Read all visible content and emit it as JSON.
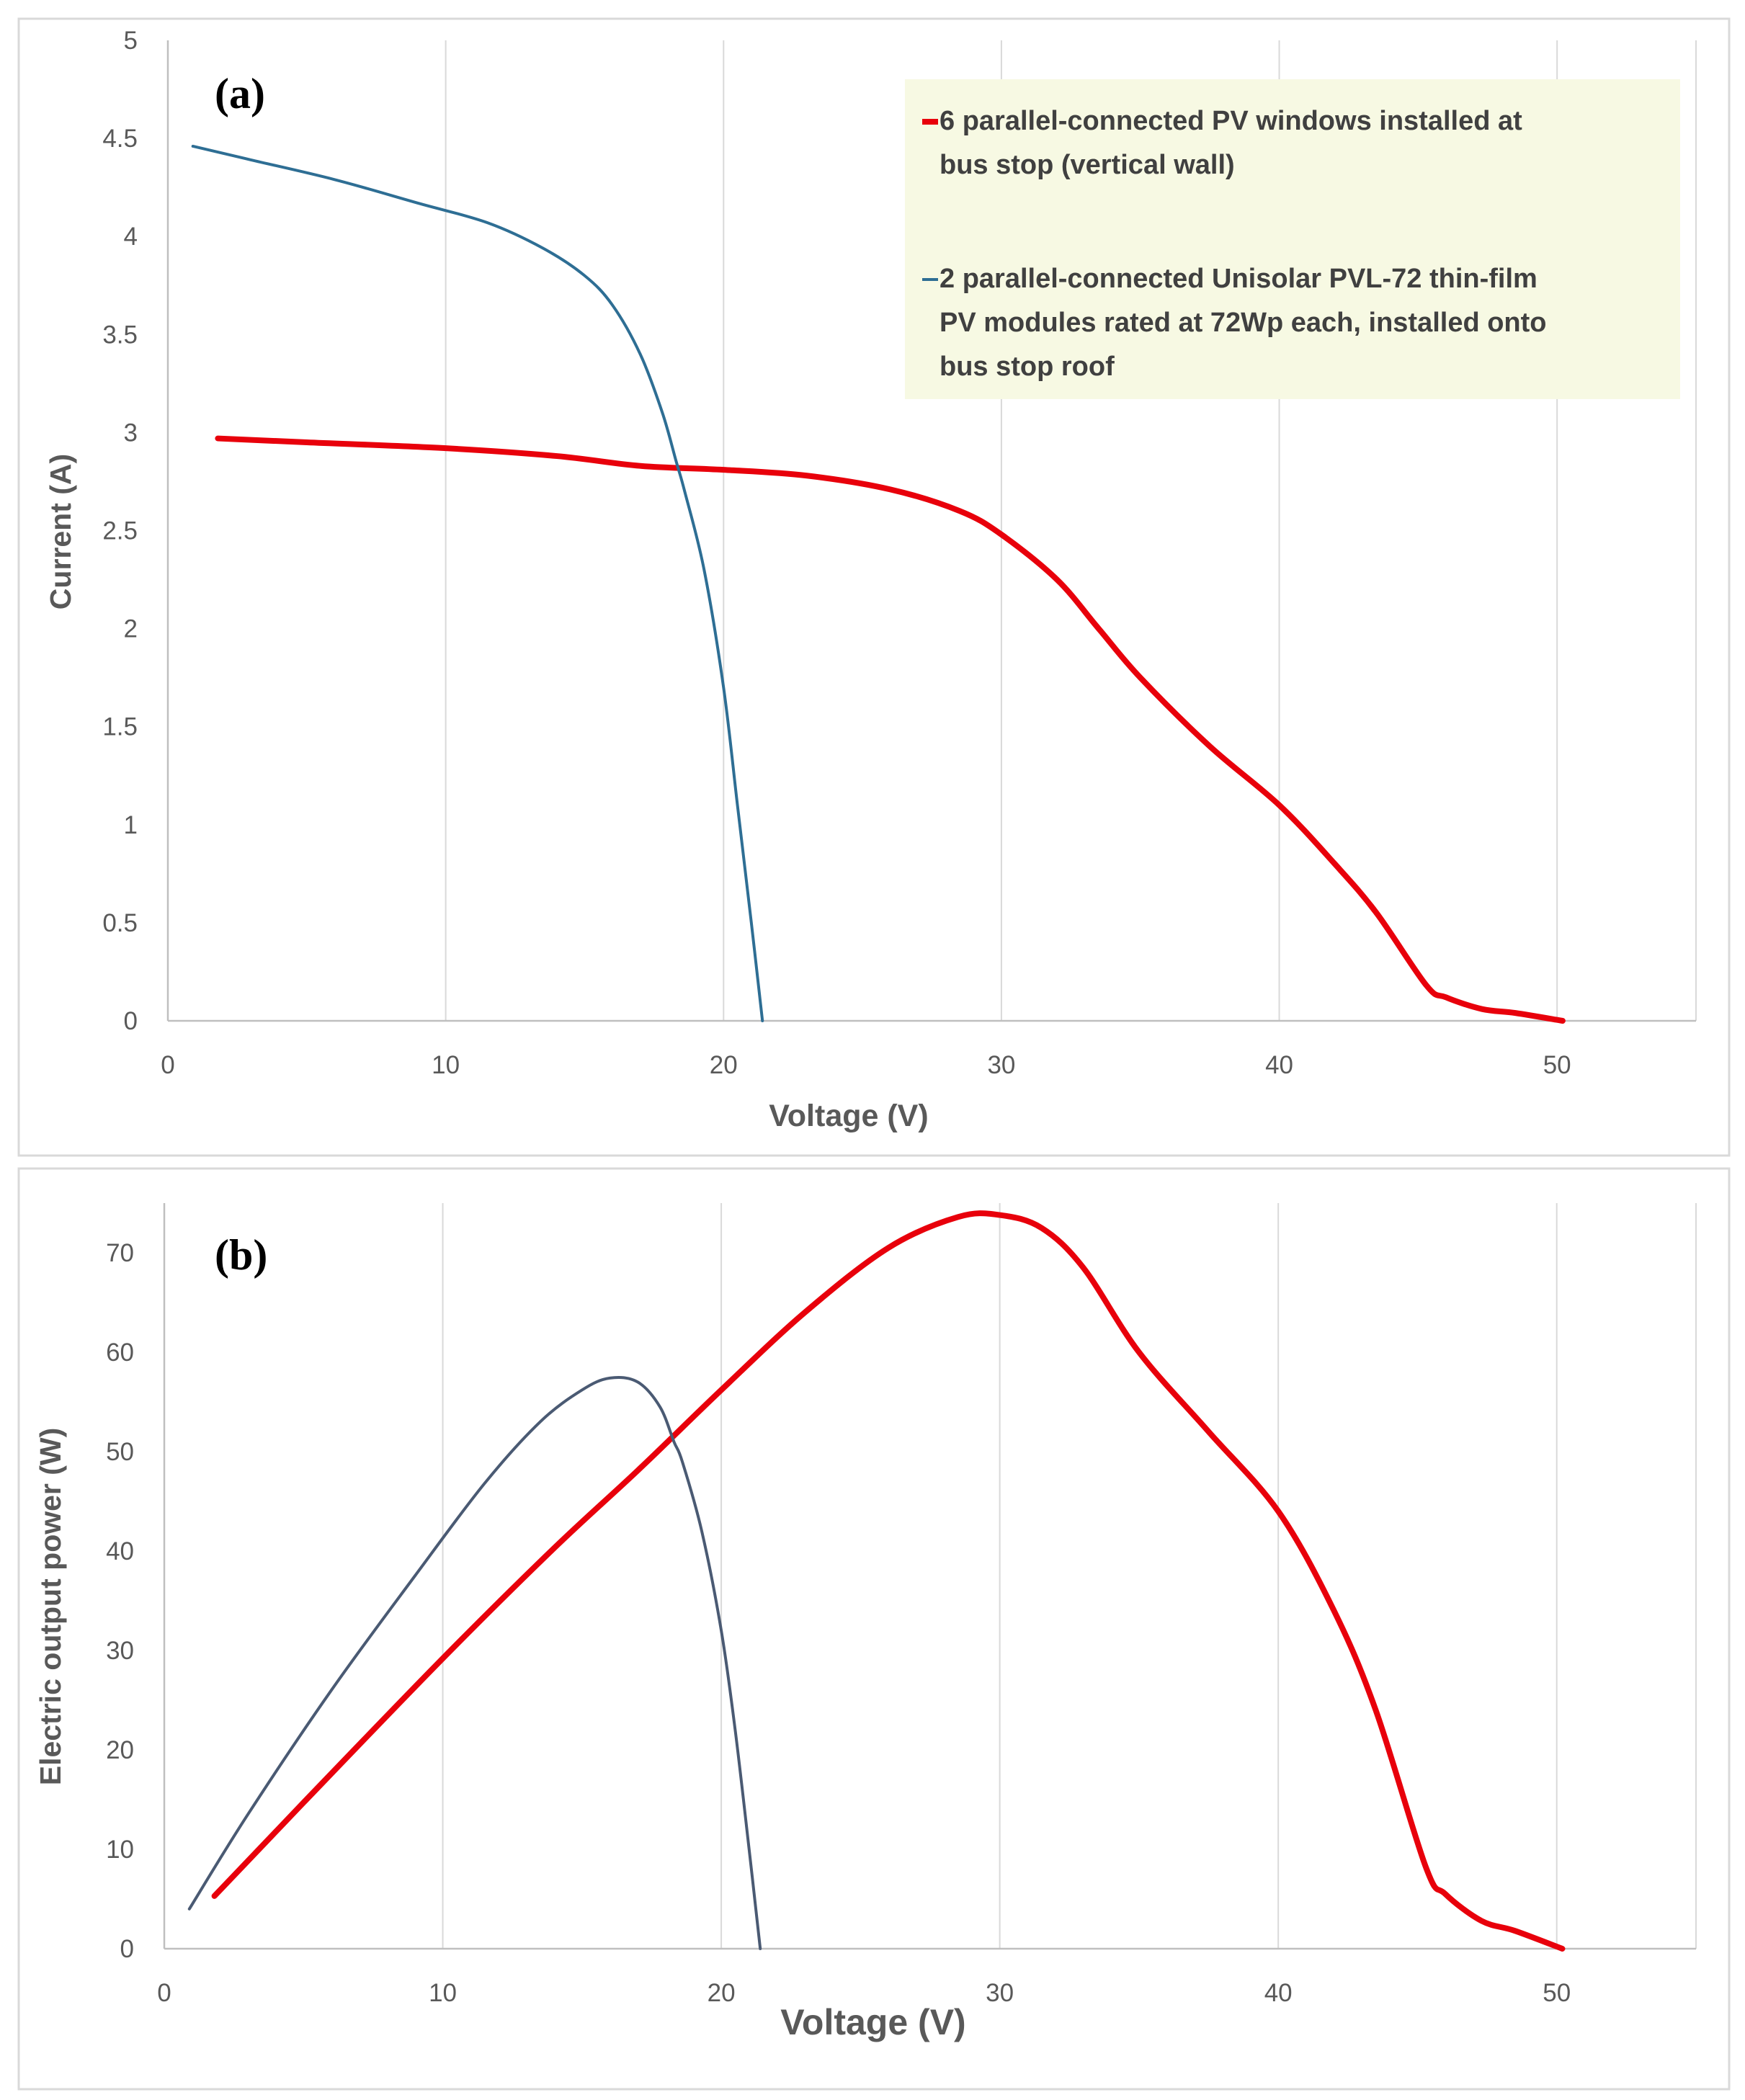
{
  "figure": {
    "colors": {
      "red_series": "#e8000b",
      "blue_series": "#2e6e94",
      "grid": "#d9d9d9",
      "axis": "#bfbfbf",
      "legend_bg": "#f7f9e3"
    }
  },
  "chart_data": [
    {
      "type": "line",
      "panel_label": "(a)",
      "xlabel": "Voltage (V)",
      "ylabel": "Current (A)",
      "xlim": [
        0,
        55
      ],
      "ylim": [
        0,
        5
      ],
      "x_ticks": [
        "0",
        "10",
        "20",
        "30",
        "40",
        "50"
      ],
      "y_ticks": [
        "0",
        "0.5",
        "1",
        "1.5",
        "2",
        "2.5",
        "3",
        "3.5",
        "4",
        "4.5",
        "5"
      ],
      "grid": "vertical",
      "legend": {
        "position": "top-right",
        "entries": [
          {
            "lines": [
              "6 parallel-connected PV windows installed at",
              "bus stop (vertical wall)"
            ]
          },
          {
            "lines": [
              "2 parallel-connected Unisolar PVL-72 thin-film",
              "PV modules rated at 72Wp each, installed onto",
              "bus stop roof"
            ]
          }
        ]
      },
      "series": [
        {
          "name": "6 parallel-connected PV windows installed at bus stop (vertical wall)",
          "color": "#e8000b",
          "points": [
            [
              1.8,
              2.97
            ],
            [
              5,
              2.95
            ],
            [
              10,
              2.92
            ],
            [
              14,
              2.88
            ],
            [
              17,
              2.83
            ],
            [
              20,
              2.81
            ],
            [
              23,
              2.78
            ],
            [
              26,
              2.71
            ],
            [
              28.5,
              2.6
            ],
            [
              30,
              2.48
            ],
            [
              32,
              2.25
            ],
            [
              33.5,
              2.0
            ],
            [
              35,
              1.75
            ],
            [
              37.5,
              1.4
            ],
            [
              40,
              1.1
            ],
            [
              42,
              0.8
            ],
            [
              43.5,
              0.55
            ],
            [
              45.3,
              0.18
            ],
            [
              46,
              0.12
            ],
            [
              47.3,
              0.06
            ],
            [
              48.5,
              0.04
            ],
            [
              50.2,
              0.0
            ]
          ]
        },
        {
          "name": "2 parallel-connected Unisolar PVL-72 thin-film PV modules rated at 72Wp each, installed onto bus stop roof",
          "color": "#2e6e94",
          "points": [
            [
              0.9,
              4.46
            ],
            [
              3,
              4.39
            ],
            [
              6,
              4.29
            ],
            [
              9,
              4.17
            ],
            [
              11.5,
              4.07
            ],
            [
              13.5,
              3.94
            ],
            [
              15,
              3.8
            ],
            [
              16,
              3.65
            ],
            [
              17,
              3.4
            ],
            [
              17.8,
              3.1
            ],
            [
              18.3,
              2.85
            ],
            [
              18.6,
              2.7
            ],
            [
              19.3,
              2.3
            ],
            [
              20,
              1.7
            ],
            [
              20.5,
              1.1
            ],
            [
              21,
              0.5
            ],
            [
              21.4,
              0.0
            ]
          ]
        }
      ]
    },
    {
      "type": "line",
      "panel_label": "(b)",
      "xlabel": "Voltage (V)",
      "ylabel": "Electric output power (W)",
      "xlim": [
        0,
        55
      ],
      "ylim": [
        0,
        75
      ],
      "x_ticks": [
        "0",
        "10",
        "20",
        "30",
        "40",
        "50"
      ],
      "y_ticks": [
        "0",
        "10",
        "20",
        "30",
        "40",
        "50",
        "60",
        "70"
      ],
      "grid": "vertical",
      "series": [
        {
          "name": "6 parallel-connected PV windows installed at bus stop (vertical wall)",
          "color": "#e8000b",
          "points": [
            [
              1.8,
              5.3
            ],
            [
              5,
              14.7
            ],
            [
              10,
              29.2
            ],
            [
              14,
              40.3
            ],
            [
              17,
              48.1
            ],
            [
              20,
              56.2
            ],
            [
              23,
              64.0
            ],
            [
              26,
              70.5
            ],
            [
              28.5,
              73.6
            ],
            [
              30,
              73.8
            ],
            [
              31.5,
              72.5
            ],
            [
              33,
              68.5
            ],
            [
              35,
              60.0
            ],
            [
              37.5,
              52.0
            ],
            [
              40,
              44.0
            ],
            [
              42,
              34.0
            ],
            [
              43.5,
              24.0
            ],
            [
              45.3,
              8.2
            ],
            [
              46,
              5.5
            ],
            [
              47.3,
              2.8
            ],
            [
              48.5,
              1.8
            ],
            [
              50.2,
              0.0
            ]
          ]
        },
        {
          "name": "2 parallel-connected Unisolar PVL-72 thin-film PV modules rated at 72Wp each, installed onto bus stop roof",
          "color": "#4a5a73",
          "points": [
            [
              0.9,
              4.0
            ],
            [
              3,
              13.5
            ],
            [
              6,
              26.0
            ],
            [
              9,
              37.5
            ],
            [
              11.5,
              46.8
            ],
            [
              13.5,
              53.0
            ],
            [
              15,
              56.2
            ],
            [
              16,
              57.4
            ],
            [
              17,
              57.0
            ],
            [
              17.8,
              54.5
            ],
            [
              18.3,
              51.0
            ],
            [
              18.6,
              49.0
            ],
            [
              19.3,
              42.0
            ],
            [
              20,
              32.0
            ],
            [
              20.5,
              22.0
            ],
            [
              21,
              10.0
            ],
            [
              21.4,
              0.0
            ]
          ]
        }
      ]
    }
  ]
}
